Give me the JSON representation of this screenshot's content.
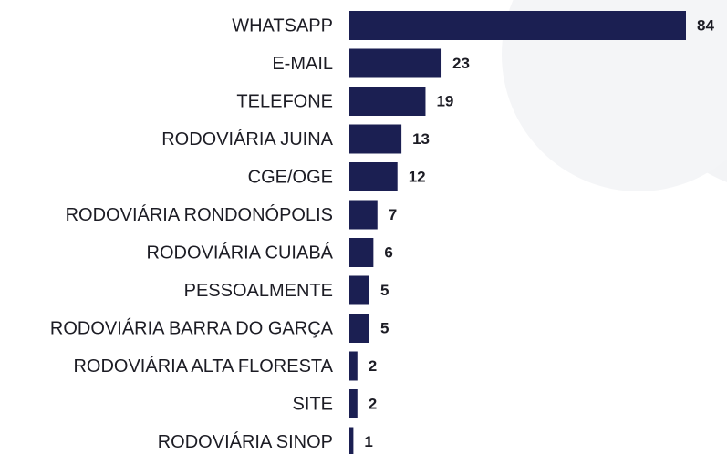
{
  "chart_data": {
    "type": "bar",
    "orientation": "horizontal",
    "categories": [
      "WHATSAPP",
      "E-MAIL",
      "TELEFONE",
      "RODOVIÁRIA JUINA",
      "CGE/OGE",
      "RODOVIÁRIA RONDONÓPOLIS",
      "RODOVIÁRIA CUIABÁ",
      "PESSOALMENTE",
      "RODOVIÁRIA BARRA DO GARÇA",
      "RODOVIÁRIA ALTA FLORESTA",
      "SITE",
      "RODOVIÁRIA SINOP"
    ],
    "values": [
      84,
      23,
      19,
      13,
      12,
      7,
      6,
      5,
      5,
      2,
      2,
      1
    ],
    "color": "#1b1f52"
  }
}
